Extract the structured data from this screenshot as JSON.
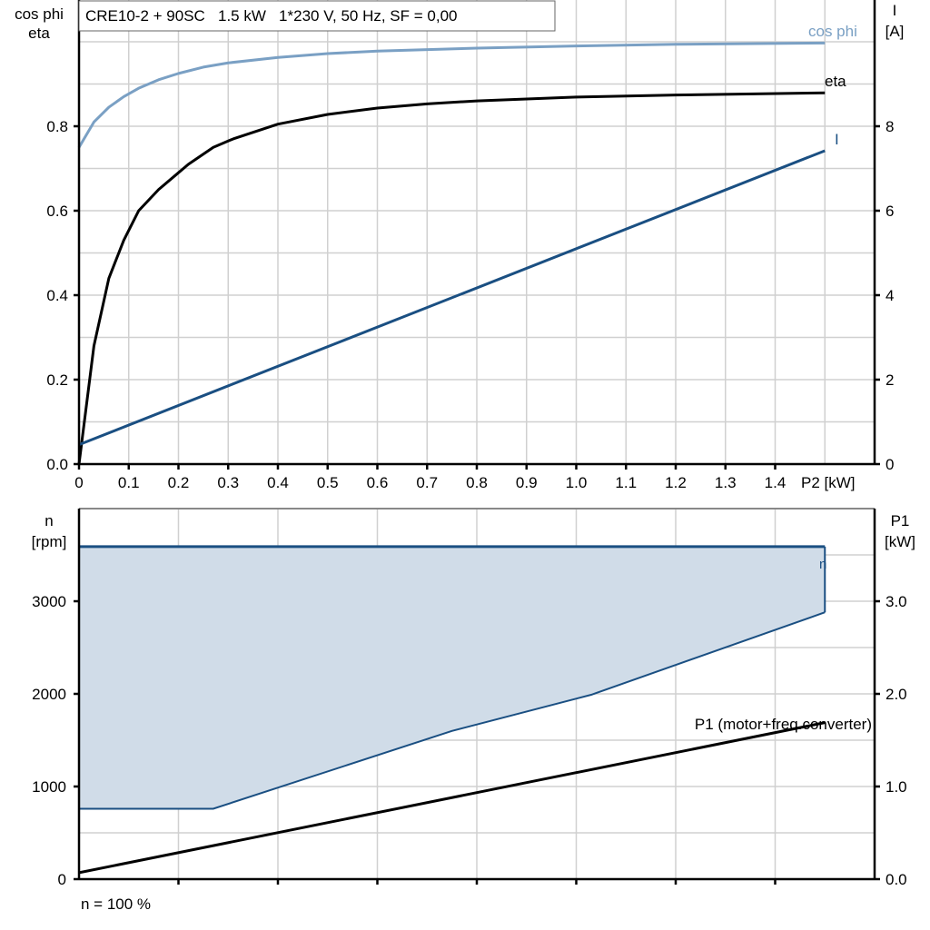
{
  "chart_data": [
    {
      "type": "line",
      "title": "CRE10-2 + 90SC   1.5 kW   1*230 V, 50 Hz, SF = 0,00",
      "xlabel": "P2 [kW]",
      "ylabel_left": [
        "cos phi",
        "eta"
      ],
      "ylabel_right": [
        "I",
        "[A]"
      ],
      "xlim": [
        0,
        1.6
      ],
      "ylim_left": [
        0,
        1.1
      ],
      "ylim_right": [
        0,
        11
      ],
      "grid": true,
      "x_ticks": [
        "0",
        "0.1",
        "0.2",
        "0.3",
        "0.4",
        "0.5",
        "0.6",
        "0.7",
        "0.8",
        "0.9",
        "1.0",
        "1.1",
        "1.2",
        "1.3",
        "1.4"
      ],
      "y_ticks_left": [
        "0.0",
        "0.2",
        "0.4",
        "0.6",
        "0.8"
      ],
      "y_ticks_right": [
        "0",
        "2",
        "4",
        "6",
        "8"
      ],
      "series": [
        {
          "name": "cos phi",
          "axis": "left",
          "color": "#7aa0c4",
          "x": [
            0,
            0.03,
            0.06,
            0.09,
            0.12,
            0.16,
            0.2,
            0.25,
            0.3,
            0.4,
            0.5,
            0.6,
            0.8,
            1.0,
            1.2,
            1.5
          ],
          "y": [
            0.75,
            0.81,
            0.845,
            0.87,
            0.89,
            0.91,
            0.925,
            0.94,
            0.95,
            0.963,
            0.972,
            0.978,
            0.985,
            0.99,
            0.994,
            0.997
          ]
        },
        {
          "name": "eta",
          "axis": "left",
          "color": "#000000",
          "x": [
            0,
            0.03,
            0.06,
            0.09,
            0.12,
            0.16,
            0.19,
            0.22,
            0.27,
            0.31,
            0.4,
            0.5,
            0.6,
            0.7,
            0.8,
            1.0,
            1.2,
            1.5
          ],
          "y": [
            0,
            0.28,
            0.44,
            0.53,
            0.6,
            0.65,
            0.68,
            0.71,
            0.75,
            0.77,
            0.805,
            0.828,
            0.843,
            0.853,
            0.86,
            0.869,
            0.874,
            0.879
          ]
        },
        {
          "name": "I",
          "axis": "right",
          "color": "#1a4f82",
          "x": [
            0,
            1.5
          ],
          "y": [
            0.46,
            7.42
          ]
        }
      ]
    },
    {
      "type": "area",
      "xlabel": "",
      "footnote": "n = 100 %",
      "ylabel_left": [
        "n",
        "[rpm]"
      ],
      "ylabel_right": [
        "P1",
        "[kW]"
      ],
      "xlim": [
        0,
        1.6
      ],
      "ylim_left": [
        0,
        4000
      ],
      "ylim_right": [
        0,
        4.0
      ],
      "grid": true,
      "y_ticks_left": [
        "0",
        "1000",
        "2000",
        "3000"
      ],
      "y_ticks_right": [
        "0.0",
        "1.0",
        "2.0",
        "3.0"
      ],
      "series": [
        {
          "name": "n",
          "axis": "left",
          "color": "#1a4f82",
          "x": [
            0,
            1.5
          ],
          "y": [
            3590,
            3590
          ]
        },
        {
          "name": "n-range-lower",
          "axis": "left",
          "color": "#1a4f82",
          "fill": "#d0dce8",
          "x": [
            0,
            0.27,
            0.75,
            1.03,
            1.5
          ],
          "y": [
            760,
            760,
            1600,
            1990,
            2880
          ]
        },
        {
          "name": "P1 (motor+freq.converter)",
          "axis": "right",
          "color": "#000000",
          "x": [
            0,
            1.5
          ],
          "y": [
            0.07,
            1.69
          ]
        }
      ]
    }
  ]
}
